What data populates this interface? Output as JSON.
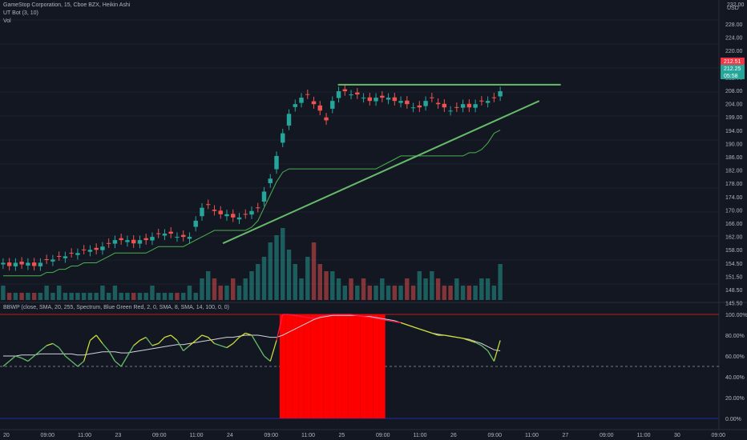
{
  "legend": {
    "symbol_line": "GameStop Corporation, 15, Cboe BZX, Heikin Ashi",
    "indicator_1": "UT Bot (3, 10)",
    "indicator_2": "Vol",
    "oscillator": "BBWP (close, SMA, 20, 255, Spectrum, Blue Green Red, 2, 0, SMA, 8, SMA, 14, 100, 0, 0)"
  },
  "price_axis": {
    "currency": "USD",
    "ticks": [
      "228.00",
      "224.00",
      "220.00",
      "216.00",
      "212.00",
      "208.00",
      "204.00",
      "199.00",
      "194.00",
      "190.00",
      "186.00",
      "182.00",
      "178.00",
      "174.00",
      "170.00",
      "166.00",
      "162.00",
      "158.00",
      "154.50",
      "151.50",
      "148.50",
      "145.50"
    ],
    "top_label": "232.00",
    "badges": [
      {
        "text": "212.51",
        "color": "#f23645"
      },
      {
        "text": "212.25",
        "color": "#26a69a"
      },
      {
        "text": "05:58",
        "color": "#26a69a"
      }
    ]
  },
  "osc_axis": {
    "ticks": [
      "100.00%",
      "80.00%",
      "60.00%",
      "40.00%",
      "20.00%",
      "0.00%"
    ]
  },
  "time_axis": {
    "ticks": [
      "20",
      "09:00",
      "11:00",
      "23",
      "09:00",
      "11:00",
      "24",
      "09:00",
      "11:00",
      "25",
      "09:00",
      "11:00",
      "26",
      "09:00",
      "11:00",
      "27",
      "09:00",
      "11:00",
      "30",
      "09:00"
    ]
  },
  "colors": {
    "up": "#26a69a",
    "down": "#ef5350",
    "ut_line": "#4caf50",
    "trendline": "#66bb6a",
    "bbwp_high": "#ff0000",
    "bbwp_ma": "#d1d4dc",
    "background": "#131722"
  },
  "chart_data": [
    {
      "type": "line",
      "name": "price",
      "style": "heikin-ashi candles",
      "ylim": [
        145.5,
        232
      ],
      "close": [
        157,
        156,
        157,
        156.5,
        157,
        156,
        157,
        158,
        158,
        159,
        159,
        160,
        160,
        161,
        161,
        161,
        162,
        163,
        164,
        164,
        164,
        163,
        164,
        164,
        165,
        166,
        166,
        166,
        165,
        165,
        165,
        170,
        174,
        175,
        173,
        172,
        172,
        171,
        171,
        172,
        173,
        174,
        179,
        183,
        190,
        197,
        203,
        206,
        208,
        209,
        206,
        204,
        201,
        207,
        210,
        210,
        209,
        209,
        208,
        207,
        208,
        208,
        208,
        207,
        207,
        206,
        205,
        205,
        207,
        208,
        206,
        205,
        204,
        205,
        206,
        205,
        206,
        207,
        207,
        208,
        210
      ]
    },
    {
      "type": "line",
      "name": "UT Bot trailing stop",
      "values": [
        153,
        153,
        153,
        153,
        153,
        153,
        153,
        154,
        154,
        155,
        155,
        156,
        156,
        157,
        157,
        157,
        158,
        159,
        160,
        160,
        160,
        160,
        160,
        160,
        161,
        162,
        162,
        162,
        162,
        162,
        163,
        164,
        165,
        166,
        167,
        167,
        167,
        167,
        167,
        167,
        168,
        170,
        174,
        178,
        182,
        185,
        186,
        186,
        186,
        186,
        186,
        186,
        186,
        186,
        186,
        186,
        186,
        186,
        186,
        186,
        186,
        187,
        188,
        189,
        190,
        190,
        190,
        190,
        190,
        190,
        190,
        190,
        190,
        190,
        190,
        191,
        191,
        192,
        194,
        197,
        198
      ]
    },
    {
      "type": "line",
      "name": "Ascending triangle",
      "top": [
        [
          0.47,
          212
        ],
        [
          0.78,
          212
        ]
      ],
      "bottom": [
        [
          0.31,
          163
        ],
        [
          0.75,
          207
        ]
      ]
    },
    {
      "type": "bar",
      "name": "Vol",
      "values": [
        2,
        1,
        1,
        1,
        1,
        1,
        1,
        2,
        1,
        2,
        1,
        1,
        1,
        1,
        1,
        1,
        2,
        1,
        2,
        1,
        1,
        1,
        1,
        1,
        2,
        1,
        1,
        1,
        1,
        1,
        2,
        1,
        3,
        4,
        3,
        2,
        2,
        3,
        2,
        3,
        4,
        5,
        6,
        8,
        9,
        10,
        7,
        5,
        3,
        6,
        8,
        5,
        4,
        4,
        3,
        2,
        3,
        2,
        3,
        2,
        2,
        3,
        2,
        2,
        2,
        3,
        2,
        4,
        3,
        4,
        3,
        2,
        2,
        3,
        2,
        2,
        2,
        3,
        3,
        2,
        5
      ]
    },
    {
      "type": "line",
      "name": "BBWP",
      "ylim": [
        0,
        100
      ],
      "values": [
        50,
        55,
        60,
        58,
        55,
        60,
        65,
        70,
        72,
        68,
        60,
        55,
        50,
        55,
        75,
        80,
        72,
        65,
        55,
        50,
        60,
        70,
        75,
        78,
        70,
        72,
        78,
        80,
        75,
        65,
        70,
        75,
        80,
        78,
        72,
        70,
        68,
        72,
        78,
        82,
        80,
        70,
        60,
        55,
        75,
        100,
        100,
        99,
        98,
        97,
        96,
        98,
        99,
        100,
        100,
        100,
        100,
        99,
        98,
        97,
        96,
        95,
        94,
        93,
        92,
        90,
        88,
        86,
        84,
        82,
        80,
        80,
        79,
        78,
        77,
        75,
        73,
        70,
        65,
        55,
        75
      ],
      "moving_average": [
        60,
        60,
        60,
        61,
        61,
        61,
        62,
        62,
        62,
        62,
        62,
        62,
        61,
        61,
        62,
        63,
        64,
        64,
        64,
        63,
        63,
        64,
        65,
        66,
        67,
        68,
        69,
        70,
        71,
        71,
        72,
        73,
        74,
        75,
        76,
        77,
        78,
        78,
        79,
        80,
        80,
        80,
        79,
        78,
        78,
        80,
        83,
        86,
        89,
        92,
        95,
        97,
        98,
        99,
        99,
        99,
        99,
        99,
        98,
        98,
        97,
        96,
        95,
        94,
        92,
        90,
        88,
        86,
        84,
        82,
        81,
        80,
        79,
        78,
        77,
        76,
        74,
        72,
        69,
        66,
        65
      ],
      "hline": 50
    }
  ]
}
